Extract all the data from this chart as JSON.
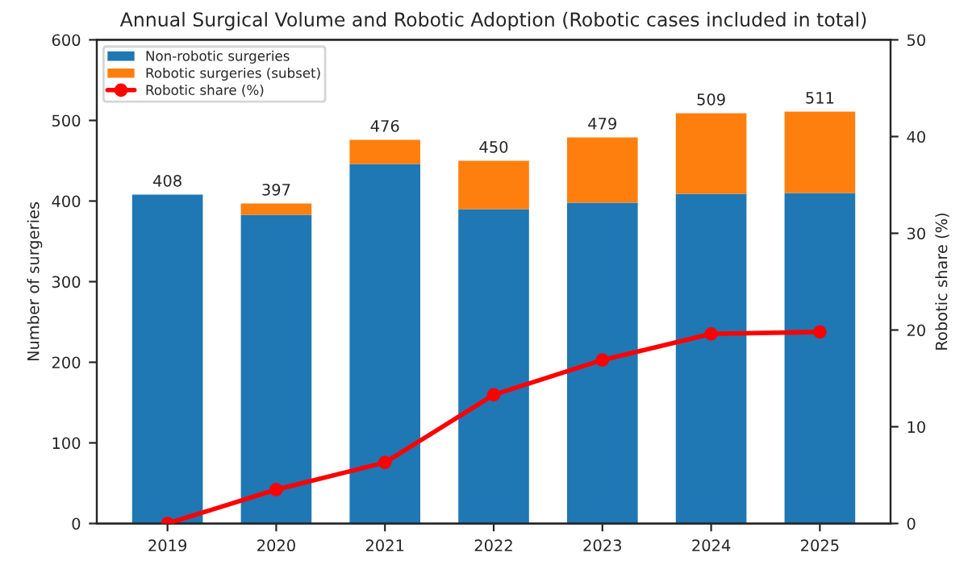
{
  "chart_data": {
    "type": "bar",
    "title": "Annual Surgical Volume and Robotic Adoption (Robotic cases included in total)",
    "ylabel": "Number of surgeries",
    "y2label": "Robotic share (%)",
    "categories": [
      "2019",
      "2020",
      "2021",
      "2022",
      "2023",
      "2024",
      "2025"
    ],
    "stacked": true,
    "series": [
      {
        "name": "Non-robotic surgeries",
        "color": "#1f77b4",
        "values": [
          408,
          383,
          446,
          390,
          398,
          409,
          410
        ]
      },
      {
        "name": "Robotic surgeries (subset)",
        "color": "#ff7f0e",
        "values": [
          0,
          14,
          30,
          60,
          81,
          100,
          101
        ]
      },
      {
        "name": "Robotic share (%)",
        "type": "line",
        "axis": "y2",
        "color": "#ff0000",
        "marker": "circle",
        "line_style": "solid",
        "values": [
          0,
          3.5,
          6.3,
          13.3,
          16.9,
          19.6,
          19.8
        ]
      }
    ],
    "totals": [
      "408",
      "397",
      "476",
      "450",
      "479",
      "509",
      "511"
    ],
    "ylim": [
      0,
      600
    ],
    "yticks": [
      0,
      100,
      200,
      300,
      400,
      500,
      600
    ],
    "y2lim": [
      0,
      50
    ],
    "y2ticks": [
      0,
      10,
      20,
      30,
      40,
      50
    ],
    "legend": "top left",
    "grid": false
  }
}
